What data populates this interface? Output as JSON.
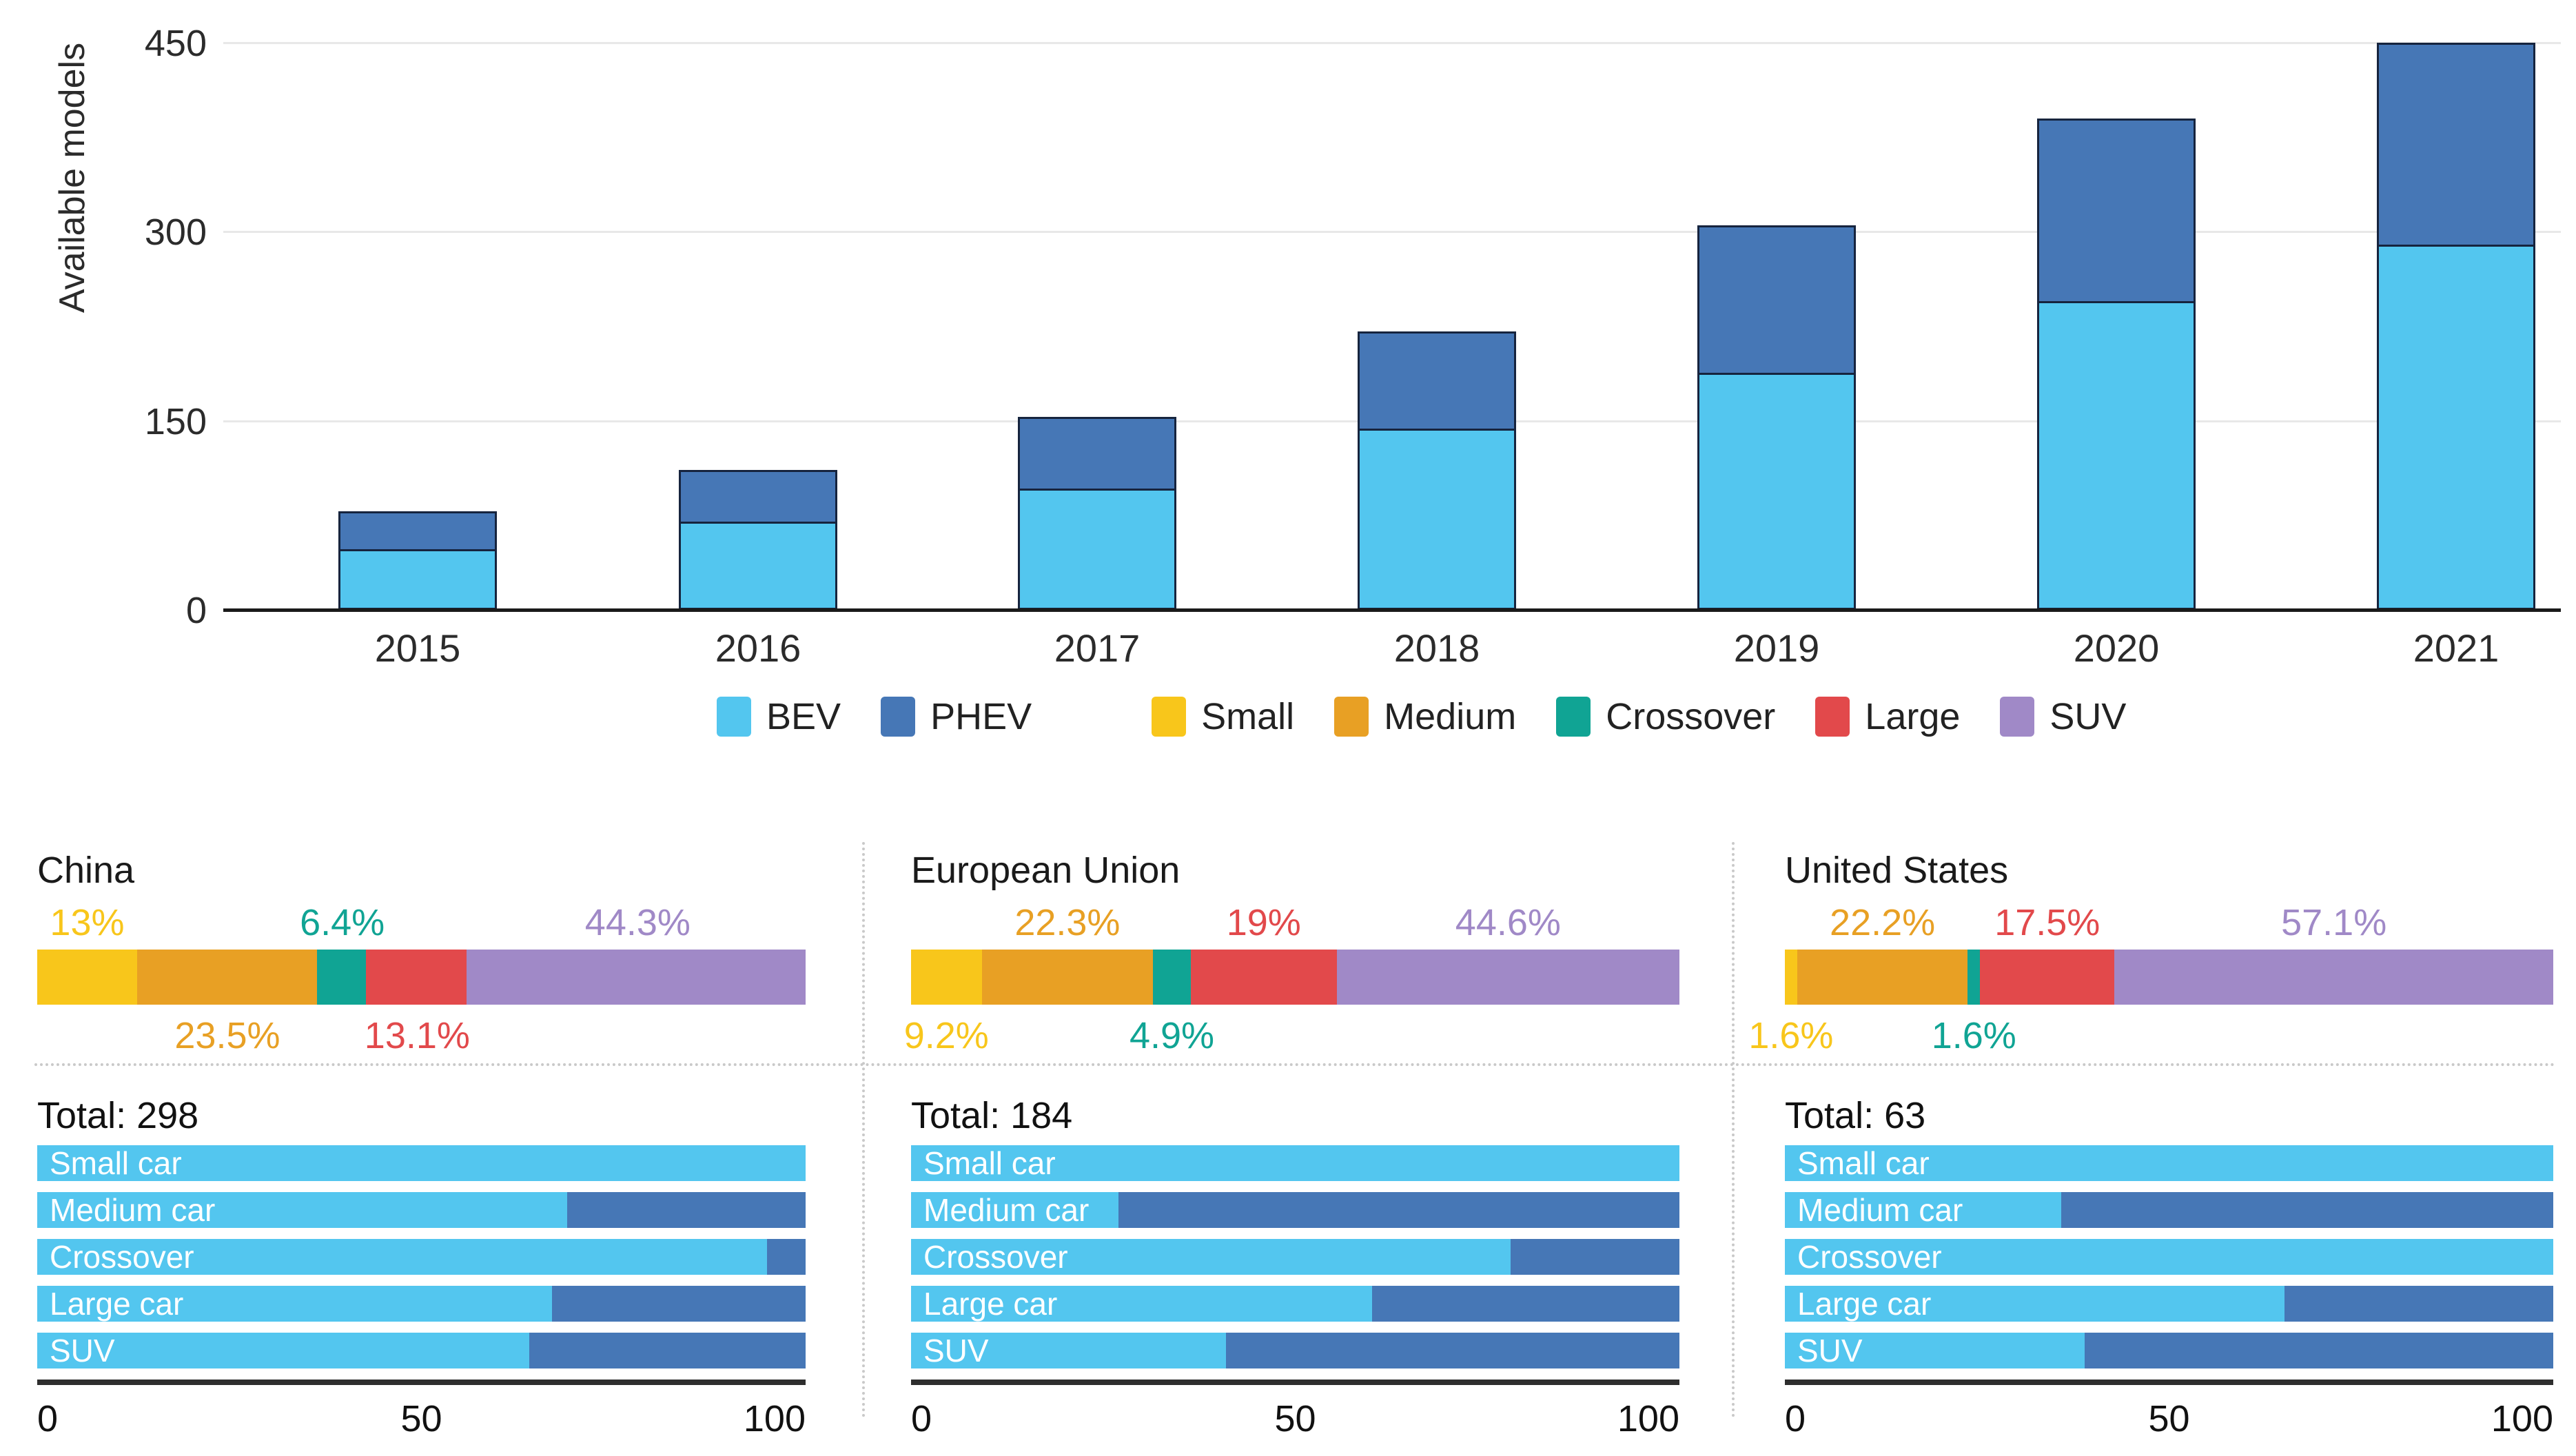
{
  "colors": {
    "bev": "#53C6EF",
    "phev": "#4677B6",
    "small": "#F8C61B",
    "medium": "#E8A024",
    "crossover": "#10A494",
    "large": "#E2494B",
    "suv": "#A089C7",
    "grid": "#E8E8E8",
    "axis": "#1A1A1A",
    "text": "#2B2B2B"
  },
  "top_chart": {
    "ylabel": "Available models",
    "yticks": [
      "0",
      "150",
      "300",
      "450"
    ],
    "ymax": 450
  },
  "legend": [
    {
      "label": "BEV",
      "key": "bev",
      "group_start": false
    },
    {
      "label": "PHEV",
      "key": "phev",
      "group_start": false
    },
    {
      "label": "Small",
      "key": "small",
      "group_start": true
    },
    {
      "label": "Medium",
      "key": "medium",
      "group_start": false
    },
    {
      "label": "Crossover",
      "key": "crossover",
      "group_start": false
    },
    {
      "label": "Large",
      "key": "large",
      "group_start": false
    },
    {
      "label": "SUV",
      "key": "suv",
      "group_start": false
    }
  ],
  "chart_data": [
    {
      "type": "bar",
      "stacked": true,
      "title": "",
      "ylabel": "Available models",
      "ylim": [
        0,
        450
      ],
      "yticks": [
        0,
        150,
        300,
        450
      ],
      "categories": [
        "2015",
        "2016",
        "2017",
        "2018",
        "2019",
        "2020",
        "2021"
      ],
      "series": [
        {
          "name": "BEV",
          "values": [
            48,
            70,
            96,
            144,
            188,
            245,
            290
          ]
        },
        {
          "name": "PHEV",
          "values": [
            30,
            41,
            57,
            77,
            117,
            145,
            160
          ]
        }
      ],
      "legend_position": "bottom",
      "grid": true
    },
    {
      "type": "bar",
      "orientation": "horizontal",
      "title": "China",
      "total_label": "Total: 298",
      "total": 298,
      "segments_pct": {
        "Small": 13,
        "Medium": 23.5,
        "Crossover": 6.4,
        "Large": 13.1,
        "SUV": 44.3
      },
      "powertrain_split_pct": {
        "Small car": {
          "BEV": 100,
          "PHEV": 0
        },
        "Medium car": {
          "BEV": 69,
          "PHEV": 31
        },
        "Crossover": {
          "BEV": 95,
          "PHEV": 5
        },
        "Large car": {
          "BEV": 67,
          "PHEV": 33
        },
        "SUV": {
          "BEV": 64,
          "PHEV": 36
        }
      },
      "xlim": [
        0,
        100
      ],
      "xticks": [
        0,
        50,
        100
      ]
    },
    {
      "type": "bar",
      "orientation": "horizontal",
      "title": "European Union",
      "total_label": "Total: 184",
      "total": 184,
      "segments_pct": {
        "Small": 9.2,
        "Medium": 22.3,
        "Crossover": 4.9,
        "Large": 19,
        "SUV": 44.6
      },
      "powertrain_split_pct": {
        "Small car": {
          "BEV": 100,
          "PHEV": 0
        },
        "Medium car": {
          "BEV": 27,
          "PHEV": 73
        },
        "Crossover": {
          "BEV": 78,
          "PHEV": 22
        },
        "Large car": {
          "BEV": 60,
          "PHEV": 40
        },
        "SUV": {
          "BEV": 41,
          "PHEV": 59
        }
      },
      "xlim": [
        0,
        100
      ],
      "xticks": [
        0,
        50,
        100
      ]
    },
    {
      "type": "bar",
      "orientation": "horizontal",
      "title": "United States",
      "total_label": "Total: 63",
      "total": 63,
      "segments_pct": {
        "Small": 1.6,
        "Medium": 22.2,
        "Crossover": 1.6,
        "Large": 17.5,
        "SUV": 57.1
      },
      "powertrain_split_pct": {
        "Small car": {
          "BEV": 100,
          "PHEV": 0
        },
        "Medium car": {
          "BEV": 36,
          "PHEV": 64
        },
        "Crossover": {
          "BEV": 100,
          "PHEV": 0
        },
        "Large car": {
          "BEV": 65,
          "PHEV": 35
        },
        "SUV": {
          "BEV": 39,
          "PHEV": 61
        }
      },
      "xlim": [
        0,
        100
      ],
      "xticks": [
        0,
        50,
        100
      ]
    }
  ],
  "panels": [
    {
      "title": "China",
      "total_label": "Total: 298",
      "segments": [
        {
          "key": "small",
          "pct": 13,
          "label": "13%",
          "label_pos": "above"
        },
        {
          "key": "medium",
          "pct": 23.5,
          "label": "23.5%",
          "label_pos": "below"
        },
        {
          "key": "crossover",
          "pct": 6.4,
          "label": "6.4%",
          "label_pos": "above"
        },
        {
          "key": "large",
          "pct": 13.1,
          "label": "13.1%",
          "label_pos": "below"
        },
        {
          "key": "suv",
          "pct": 44.3,
          "label": "44.3%",
          "label_pos": "above"
        }
      ],
      "rows": [
        {
          "label": "Small car",
          "bev": 100,
          "phev": 0
        },
        {
          "label": "Medium car",
          "bev": 69,
          "phev": 31
        },
        {
          "label": "Crossover",
          "bev": 95,
          "phev": 5
        },
        {
          "label": "Large car",
          "bev": 67,
          "phev": 33
        },
        {
          "label": "SUV",
          "bev": 64,
          "phev": 36
        }
      ],
      "xticks": [
        "0",
        "50",
        "100"
      ]
    },
    {
      "title": "European Union",
      "total_label": "Total: 184",
      "segments": [
        {
          "key": "small",
          "pct": 9.2,
          "label": "9.2%",
          "label_pos": "below"
        },
        {
          "key": "medium",
          "pct": 22.3,
          "label": "22.3%",
          "label_pos": "above"
        },
        {
          "key": "crossover",
          "pct": 4.9,
          "label": "4.9%",
          "label_pos": "below"
        },
        {
          "key": "large",
          "pct": 19,
          "label": "19%",
          "label_pos": "above"
        },
        {
          "key": "suv",
          "pct": 44.6,
          "label": "44.6%",
          "label_pos": "above"
        }
      ],
      "rows": [
        {
          "label": "Small car",
          "bev": 100,
          "phev": 0
        },
        {
          "label": "Medium car",
          "bev": 27,
          "phev": 73
        },
        {
          "label": "Crossover",
          "bev": 78,
          "phev": 22
        },
        {
          "label": "Large car",
          "bev": 60,
          "phev": 40
        },
        {
          "label": "SUV",
          "bev": 41,
          "phev": 59
        }
      ],
      "xticks": [
        "0",
        "50",
        "100"
      ]
    },
    {
      "title": "United States",
      "total_label": "Total: 63",
      "segments": [
        {
          "key": "small",
          "pct": 1.6,
          "label": "1.6%",
          "label_pos": "below"
        },
        {
          "key": "medium",
          "pct": 22.2,
          "label": "22.2%",
          "label_pos": "above"
        },
        {
          "key": "crossover",
          "pct": 1.6,
          "label": "1.6%",
          "label_pos": "below"
        },
        {
          "key": "large",
          "pct": 17.5,
          "label": "17.5%",
          "label_pos": "above"
        },
        {
          "key": "suv",
          "pct": 57.1,
          "label": "57.1%",
          "label_pos": "above"
        }
      ],
      "rows": [
        {
          "label": "Small car",
          "bev": 100,
          "phev": 0
        },
        {
          "label": "Medium car",
          "bev": 36,
          "phev": 64
        },
        {
          "label": "Crossover",
          "bev": 100,
          "phev": 0
        },
        {
          "label": "Large car",
          "bev": 65,
          "phev": 35
        },
        {
          "label": "SUV",
          "bev": 39,
          "phev": 61
        }
      ],
      "xticks": [
        "0",
        "50",
        "100"
      ]
    }
  ]
}
